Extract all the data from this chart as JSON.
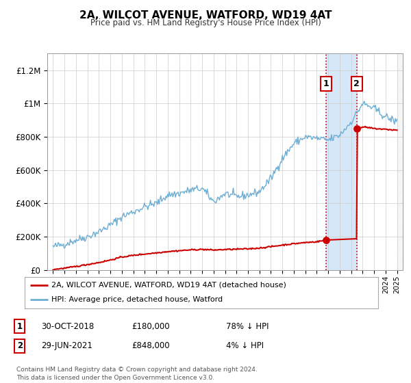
{
  "title": "2A, WILCOT AVENUE, WATFORD, WD19 4AT",
  "subtitle": "Price paid vs. HM Land Registry's House Price Index (HPI)",
  "ylabel_ticks": [
    "£0",
    "£200K",
    "£400K",
    "£600K",
    "£800K",
    "£1M",
    "£1.2M"
  ],
  "ytick_values": [
    0,
    200000,
    400000,
    600000,
    800000,
    1000000,
    1200000
  ],
  "ylim": [
    0,
    1300000
  ],
  "xlim_start": 1994.5,
  "xlim_end": 2025.5,
  "hpi_color": "#6baed6",
  "price_color": "#cc0000",
  "bg_color": "#ffffff",
  "grid_color": "#cccccc",
  "annotation_bg": "#d6e8f7",
  "sale1_x": 2018.83,
  "sale1_y": 180000,
  "sale2_x": 2021.49,
  "sale2_y": 848000,
  "legend_line1": "2A, WILCOT AVENUE, WATFORD, WD19 4AT (detached house)",
  "legend_line2": "HPI: Average price, detached house, Watford",
  "table_row1_num": "1",
  "table_row1_date": "30-OCT-2018",
  "table_row1_price": "£180,000",
  "table_row1_hpi": "78% ↓ HPI",
  "table_row2_num": "2",
  "table_row2_date": "29-JUN-2021",
  "table_row2_price": "£848,000",
  "table_row2_hpi": "4% ↓ HPI",
  "footer": "Contains HM Land Registry data © Crown copyright and database right 2024.\nThis data is licensed under the Open Government Licence v3.0."
}
